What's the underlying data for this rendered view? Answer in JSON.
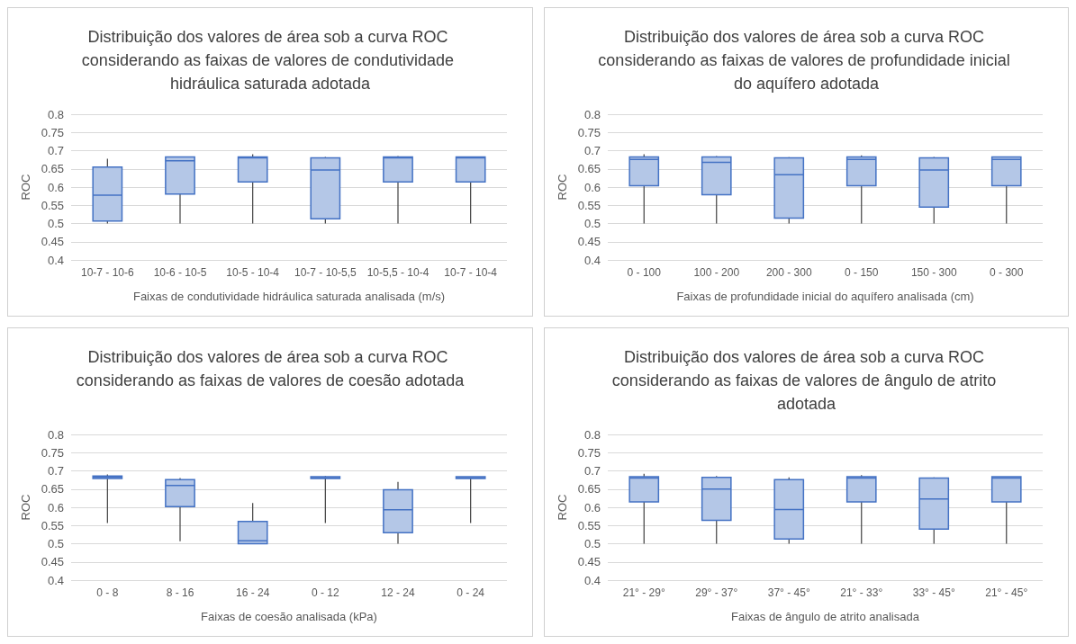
{
  "chart_data": [
    {
      "type": "box",
      "title": "Distribuição dos valores de área sob a curva ROC considerando as faixas de valores de condutividade hidráulica saturada adotada",
      "xlabel": "Faixas de condutividade hidráulica saturada analisada (m/s)",
      "ylabel": "ROC",
      "categories": [
        "10-7 - 10-6",
        "10-6 - 10-5",
        "10-5 - 10-4",
        "10-7 - 10-5,5",
        "10-5,5 - 10-4",
        "10-7 - 10-4"
      ],
      "ylim": [
        0.4,
        0.8
      ],
      "yticks": [
        0.4,
        0.45,
        0.5,
        0.55,
        0.6,
        0.65,
        0.7,
        0.75,
        0.8
      ],
      "grid": "y",
      "series": [
        {
          "color": "#b4c7e7",
          "boxes": [
            {
              "low": 0.5,
              "q1": 0.507,
              "median": 0.578,
              "q3": 0.655,
              "high": 0.678
            },
            {
              "low": 0.5,
              "q1": 0.581,
              "median": 0.672,
              "q3": 0.683,
              "high": 0.684
            },
            {
              "low": 0.5,
              "q1": 0.614,
              "median": 0.68,
              "q3": 0.683,
              "high": 0.69
            },
            {
              "low": 0.5,
              "q1": 0.513,
              "median": 0.647,
              "q3": 0.68,
              "high": 0.683
            },
            {
              "low": 0.5,
              "q1": 0.614,
              "median": 0.68,
              "q3": 0.683,
              "high": 0.685
            },
            {
              "low": 0.5,
              "q1": 0.614,
              "median": 0.68,
              "q3": 0.683,
              "high": 0.684
            }
          ]
        }
      ]
    },
    {
      "type": "box",
      "title": "Distribuição dos valores de área sob a curva ROC considerando as faixas de valores de profundidade inicial do aquífero adotada",
      "xlabel": "Faixas de profundidade inicial do aquífero analisada (cm)",
      "ylabel": "ROC",
      "categories": [
        "0 - 100",
        "100 - 200",
        "200 - 300",
        "0 - 150",
        "150 - 300",
        "0 - 300"
      ],
      "ylim": [
        0.4,
        0.8
      ],
      "yticks": [
        0.4,
        0.45,
        0.5,
        0.55,
        0.6,
        0.65,
        0.7,
        0.75,
        0.8
      ],
      "grid": "y",
      "series": [
        {
          "color": "#b4c7e7",
          "boxes": [
            {
              "low": 0.5,
              "q1": 0.604,
              "median": 0.676,
              "q3": 0.683,
              "high": 0.69
            },
            {
              "low": 0.5,
              "q1": 0.579,
              "median": 0.668,
              "q3": 0.683,
              "high": 0.685
            },
            {
              "low": 0.5,
              "q1": 0.515,
              "median": 0.634,
              "q3": 0.68,
              "high": 0.682
            },
            {
              "low": 0.5,
              "q1": 0.604,
              "median": 0.676,
              "q3": 0.683,
              "high": 0.687
            },
            {
              "low": 0.5,
              "q1": 0.545,
              "median": 0.647,
              "q3": 0.68,
              "high": 0.683
            },
            {
              "low": 0.5,
              "q1": 0.604,
              "median": 0.676,
              "q3": 0.683,
              "high": 0.684
            }
          ]
        }
      ]
    },
    {
      "type": "box",
      "title": "Distribuição dos valores de área sob a curva ROC considerando as faixas de valores de coesão adotada",
      "xlabel": "Faixas de coesão analisada (kPa)",
      "ylabel": "ROC",
      "categories": [
        "0 - 8",
        "8 - 16",
        "16 - 24",
        "0 - 12",
        "12 - 24",
        "0 - 24"
      ],
      "ylim": [
        0.4,
        0.8
      ],
      "yticks": [
        0.4,
        0.45,
        0.5,
        0.55,
        0.6,
        0.65,
        0.7,
        0.75,
        0.8
      ],
      "grid": "y",
      "series": [
        {
          "color": "#b4c7e7",
          "boxes": [
            {
              "low": 0.557,
              "q1": 0.679,
              "median": 0.683,
              "q3": 0.686,
              "high": 0.69
            },
            {
              "low": 0.507,
              "q1": 0.602,
              "median": 0.66,
              "q3": 0.676,
              "high": 0.68
            },
            {
              "low": 0.5,
              "q1": 0.5,
              "median": 0.508,
              "q3": 0.561,
              "high": 0.612
            },
            {
              "low": 0.557,
              "q1": 0.679,
              "median": 0.681,
              "q3": 0.684,
              "high": 0.686
            },
            {
              "low": 0.5,
              "q1": 0.53,
              "median": 0.593,
              "q3": 0.648,
              "high": 0.67
            },
            {
              "low": 0.557,
              "q1": 0.679,
              "median": 0.681,
              "q3": 0.684,
              "high": 0.684
            }
          ]
        }
      ]
    },
    {
      "type": "box",
      "title": "Distribuição dos valores de área sob a curva ROC considerando as faixas de valores de ângulo de atrito adotada",
      "xlabel": "Faixas de ângulo de atrito analisada",
      "ylabel": "ROC",
      "categories": [
        "21° - 29°",
        "29° - 37°",
        "37° - 45°",
        "21° - 33°",
        "33° - 45°",
        "21° - 45°"
      ],
      "ylim": [
        0.4,
        0.8
      ],
      "yticks": [
        0.4,
        0.45,
        0.5,
        0.55,
        0.6,
        0.65,
        0.7,
        0.75,
        0.8
      ],
      "grid": "y",
      "series": [
        {
          "color": "#b4c7e7",
          "boxes": [
            {
              "low": 0.5,
              "q1": 0.615,
              "median": 0.68,
              "q3": 0.684,
              "high": 0.692
            },
            {
              "low": 0.5,
              "q1": 0.564,
              "median": 0.65,
              "q3": 0.682,
              "high": 0.686
            },
            {
              "low": 0.5,
              "q1": 0.513,
              "median": 0.594,
              "q3": 0.676,
              "high": 0.682
            },
            {
              "low": 0.5,
              "q1": 0.615,
              "median": 0.68,
              "q3": 0.684,
              "high": 0.688
            },
            {
              "low": 0.5,
              "q1": 0.54,
              "median": 0.623,
              "q3": 0.68,
              "high": 0.682
            },
            {
              "low": 0.5,
              "q1": 0.615,
              "median": 0.68,
              "q3": 0.684,
              "high": 0.684
            }
          ]
        }
      ]
    }
  ]
}
